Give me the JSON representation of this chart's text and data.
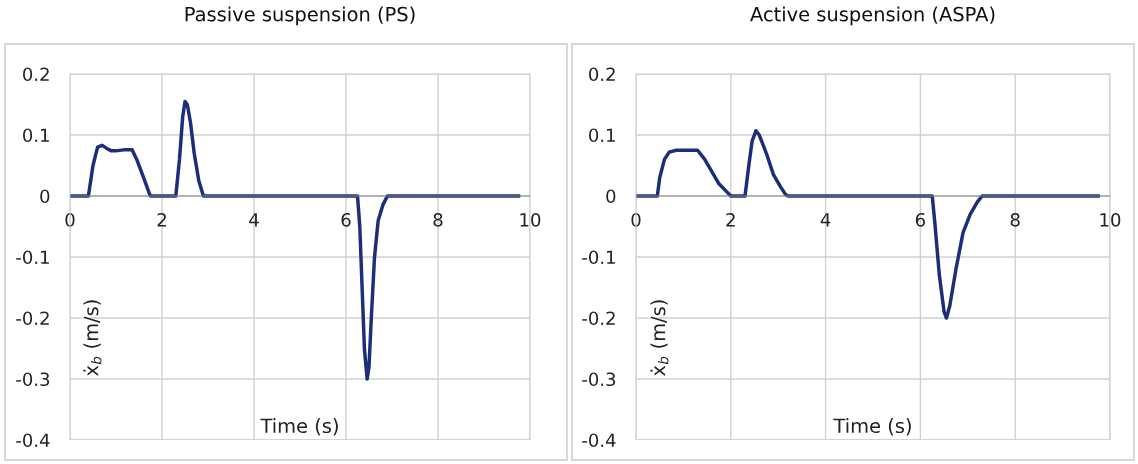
{
  "chart_data": [
    {
      "type": "line",
      "title": "Passive suspension (PS)",
      "xlabel": "Time (s)",
      "ylabel": "ẋ$_{b}$ (m/s)",
      "xlim": [
        0,
        10
      ],
      "ylim": [
        -0.4,
        0.2
      ],
      "xticks": [
        0,
        2,
        4,
        6,
        8,
        10
      ],
      "yticks": [
        -0.4,
        -0.3,
        -0.2,
        -0.1,
        0,
        0.1,
        0.2
      ],
      "grid": true,
      "series": [
        {
          "color": "#1c2e7a",
          "x": [
            0,
            0.4,
            0.5,
            0.6,
            0.7,
            0.8,
            0.9,
            1.0,
            1.2,
            1.35,
            1.45,
            1.6,
            1.72,
            1.75,
            2.3,
            2.38,
            2.45,
            2.5,
            2.55,
            2.62,
            2.7,
            2.8,
            2.9,
            6.25,
            6.3,
            6.35,
            6.4,
            6.46,
            6.5,
            6.55,
            6.62,
            6.7,
            6.8,
            6.9,
            9.75
          ],
          "values": [
            0,
            0,
            0.05,
            0.08,
            0.083,
            0.078,
            0.074,
            0.074,
            0.076,
            0.076,
            0.06,
            0.03,
            0.005,
            0,
            0,
            0.06,
            0.13,
            0.155,
            0.15,
            0.12,
            0.07,
            0.025,
            0,
            0,
            -0.05,
            -0.15,
            -0.25,
            -0.3,
            -0.28,
            -0.2,
            -0.1,
            -0.04,
            -0.015,
            0,
            0
          ]
        }
      ]
    },
    {
      "type": "line",
      "title": "Active suspension (ASPA)",
      "xlabel": "Time (s)",
      "ylabel": "ẋ$_{b}$ (m/s)",
      "xlim": [
        0,
        10
      ],
      "ylim": [
        -0.4,
        0.2
      ],
      "xticks": [
        0,
        2,
        4,
        6,
        8,
        10
      ],
      "yticks": [
        -0.4,
        -0.3,
        -0.2,
        -0.1,
        0,
        0.1,
        0.2
      ],
      "grid": true,
      "series": [
        {
          "color": "#1c2e7a",
          "x": [
            0,
            0.45,
            0.5,
            0.6,
            0.7,
            0.85,
            1.3,
            1.45,
            1.6,
            1.75,
            1.9,
            2.0,
            2.3,
            2.38,
            2.45,
            2.53,
            2.6,
            2.75,
            2.9,
            3.05,
            3.15,
            3.2,
            6.25,
            6.3,
            6.4,
            6.5,
            6.55,
            6.62,
            6.75,
            6.9,
            7.05,
            7.2,
            7.3,
            9.75
          ],
          "values": [
            0,
            0,
            0.03,
            0.06,
            0.072,
            0.075,
            0.075,
            0.06,
            0.04,
            0.02,
            0.008,
            0,
            0,
            0.05,
            0.09,
            0.107,
            0.1,
            0.07,
            0.035,
            0.015,
            0.003,
            0,
            0,
            -0.04,
            -0.13,
            -0.19,
            -0.2,
            -0.18,
            -0.12,
            -0.06,
            -0.03,
            -0.01,
            0,
            0
          ]
        }
      ]
    }
  ]
}
